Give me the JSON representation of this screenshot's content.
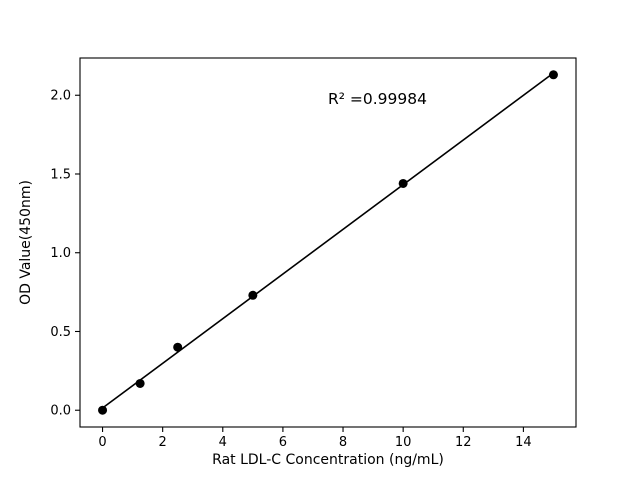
{
  "chart_data": {
    "type": "scatter",
    "title": "",
    "xlabel": "Rat LDL-C Concentration (ng/mL)",
    "ylabel": "OD Value(450nm)",
    "annotation": "R² =0.99984",
    "x": [
      0,
      1.25,
      2.5,
      5,
      10,
      15
    ],
    "y": [
      0.0,
      0.17,
      0.4,
      0.73,
      1.44,
      2.13
    ],
    "fit_line": {
      "slope": 0.1418,
      "intercept": 0.0141,
      "x_start": 0,
      "x_end": 15
    },
    "xlim": [
      -0.75,
      15.75
    ],
    "ylim": [
      -0.1065,
      2.2365
    ],
    "x_ticks": [
      "0",
      "2",
      "4",
      "6",
      "8",
      "10",
      "12",
      "14"
    ],
    "y_ticks": [
      "0.0",
      "0.5",
      "1.0",
      "1.5",
      "2.0"
    ],
    "grid": false,
    "legend": "none",
    "marker_color": "#000000",
    "line_color": "#000000",
    "background": "#ffffff"
  }
}
